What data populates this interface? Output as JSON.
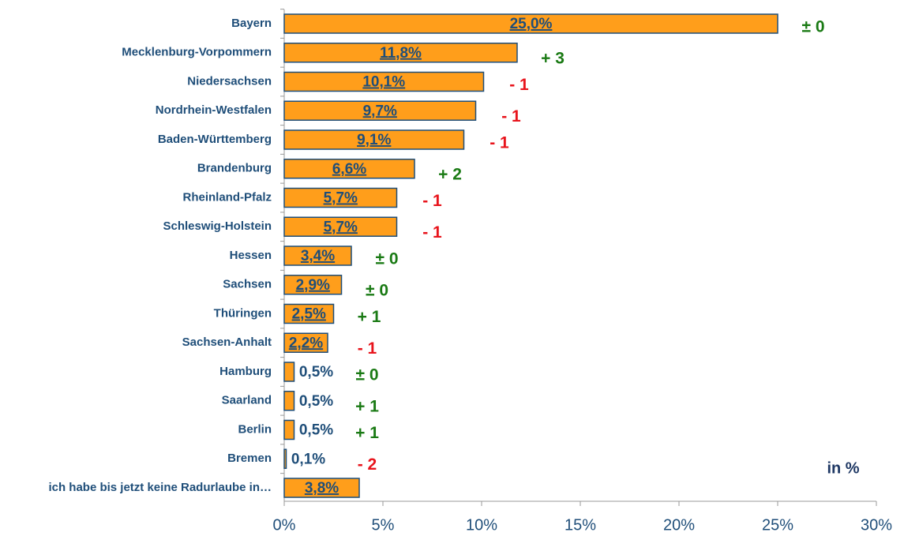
{
  "chart_data": {
    "type": "bar",
    "orientation": "horizontal",
    "categories": [
      "Bayern",
      "Mecklenburg-Vorpommern",
      "Niedersachsen",
      "Nordrhein-Westfalen",
      "Baden-Württemberg",
      "Brandenburg",
      "Rheinland-Pfalz",
      "Schleswig-Holstein",
      "Hessen",
      "Sachsen",
      "Thüringen",
      "Sachsen-Anhalt",
      "Hamburg",
      "Saarland",
      "Berlin",
      "Bremen",
      "ich habe bis jetzt keine Radurlaube in…"
    ],
    "values": [
      25.0,
      11.8,
      10.1,
      9.7,
      9.1,
      6.6,
      5.7,
      5.7,
      3.4,
      2.9,
      2.5,
      2.2,
      0.5,
      0.5,
      0.5,
      0.1,
      3.8
    ],
    "value_labels": [
      "25,0%",
      "11,8%",
      "10,1%",
      "9,7%",
      "9,1%",
      "6,6%",
      "5,7%",
      "5,7%",
      "3,4%",
      "2,9%",
      "2,5%",
      "2,2%",
      "0,5%",
      "0,5%",
      "0,5%",
      "0,1%",
      "3,8%"
    ],
    "changes": [
      "± 0",
      "+ 3",
      "- 1",
      "- 1",
      "- 1",
      "+ 2",
      "- 1",
      "- 1",
      "± 0",
      "± 0",
      "+ 1",
      "- 1",
      "± 0",
      "+ 1",
      "+ 1",
      "- 2",
      null
    ],
    "color": "#ff9e1b",
    "xlim": [
      0,
      30
    ],
    "xticks": [
      {
        "value": 0,
        "label": "0%"
      },
      {
        "value": 5,
        "label": "5%"
      },
      {
        "value": 10,
        "label": "10%"
      },
      {
        "value": 15,
        "label": "15%"
      },
      {
        "value": 20,
        "label": "20%"
      },
      {
        "value": 25,
        "label": "25%"
      },
      {
        "value": 30,
        "label": "30%"
      }
    ],
    "unit_label": "in %"
  }
}
